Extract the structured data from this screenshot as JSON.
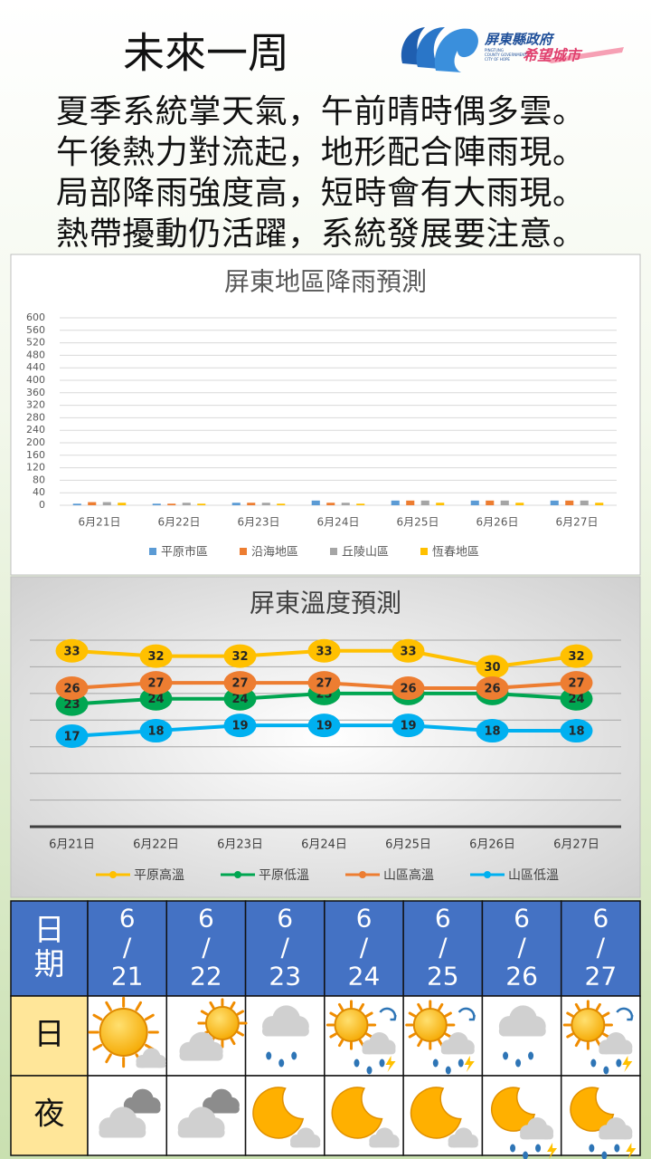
{
  "header": {
    "title": "未來一周",
    "logo": {
      "name": "屏東縣政府",
      "slogan": "希望城市",
      "english": [
        "PINGTUNG",
        "COUNTY GOVERNMENT",
        "CITY OF HOPE"
      ]
    }
  },
  "summary": [
    "夏季系統掌天氣，午前晴時偶多雲。",
    "午後熱力對流起，地形配合陣雨現。",
    "局部降雨強度高，短時會有大雨現。",
    "熱帶擾動仍活躍，系統發展要注意。"
  ],
  "chart_data": [
    {
      "type": "bar",
      "title": "屏東地區降雨預測",
      "categories": [
        "6月21日",
        "6月22日",
        "6月23日",
        "6月24日",
        "6月25日",
        "6月26日",
        "6月27日"
      ],
      "series": [
        {
          "name": "平原市區",
          "color": "#5b9bd5",
          "values": [
            5,
            5,
            8,
            15,
            15,
            15,
            15
          ]
        },
        {
          "name": "沿海地區",
          "color": "#ed7d31",
          "values": [
            10,
            5,
            8,
            8,
            15,
            15,
            15
          ]
        },
        {
          "name": "丘陵山區",
          "color": "#a5a5a5",
          "values": [
            10,
            8,
            8,
            8,
            15,
            15,
            15
          ]
        },
        {
          "name": "恆春地區",
          "color": "#ffc000",
          "values": [
            8,
            5,
            5,
            5,
            8,
            8,
            8
          ]
        }
      ],
      "ylim": [
        0,
        600
      ],
      "yticks": [
        0,
        40,
        80,
        120,
        160,
        200,
        240,
        280,
        320,
        360,
        400,
        440,
        480,
        520,
        560,
        600
      ],
      "grid": true,
      "legend": "bottom"
    },
    {
      "type": "line",
      "title": "屏東溫度預測",
      "categories": [
        "6月21日",
        "6月22日",
        "6月23日",
        "6月24日",
        "6月25日",
        "6月26日",
        "6月27日"
      ],
      "series": [
        {
          "name": "平原高溫",
          "color": "#ffc000",
          "values": [
            33,
            32,
            32,
            33,
            33,
            30,
            32
          ]
        },
        {
          "name": "平原低溫",
          "color": "#00a651",
          "values": [
            23,
            24,
            24,
            25,
            25,
            25,
            24
          ]
        },
        {
          "name": "山區高溫",
          "color": "#ed7d31",
          "values": [
            26,
            27,
            27,
            27,
            26,
            26,
            27
          ]
        },
        {
          "name": "山區低溫",
          "color": "#00b0f0",
          "values": [
            17,
            18,
            19,
            19,
            19,
            18,
            18
          ]
        }
      ],
      "ylim": [
        0,
        35
      ],
      "yticks": [
        0,
        5,
        10,
        15,
        20,
        25,
        30,
        35
      ],
      "show_ytick_labels": false,
      "grid": true,
      "data_labels": true,
      "legend": "bottom"
    }
  ],
  "table": {
    "header": [
      "日\n期",
      "6\n/\n21",
      "6\n/\n22",
      "6\n/\n23",
      "6\n/\n24",
      "6\n/\n25",
      "6\n/\n26",
      "6\n/\n27"
    ],
    "rows": [
      [
        "日"
      ],
      [
        "夜"
      ]
    ]
  }
}
